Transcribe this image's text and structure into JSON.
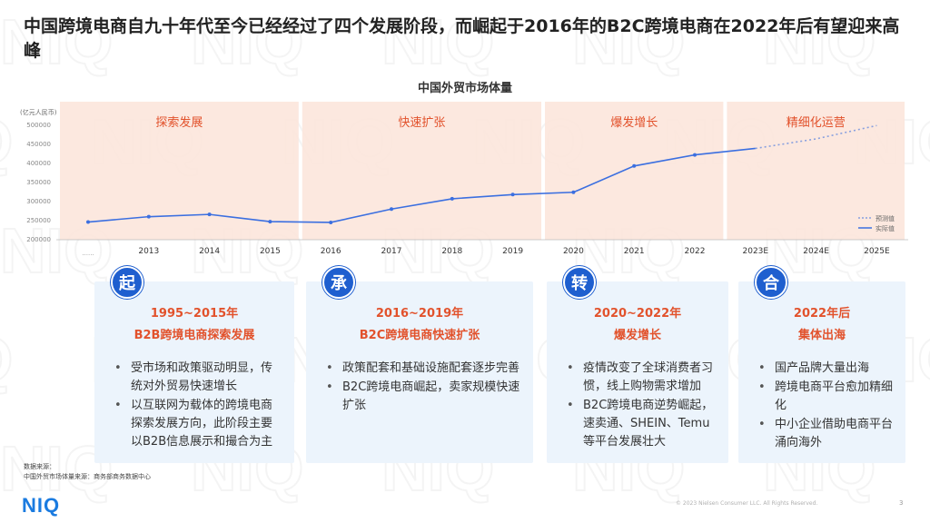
{
  "headline": "中国跨境电商自九十年代至今已经经过了四个发展阶段，而崛起于2016年的B2C跨境电商在2022年后有望迎来高峰",
  "watermark": "NIQ",
  "colors": {
    "accent": "#1f5fcf",
    "line": "#3b6fe0",
    "orange": "#e2522c",
    "phase_bg": "#fbe4d9",
    "card_bg": "#ecf4fc"
  },
  "chart_data": {
    "type": "line",
    "title": "中国外贸市场体量",
    "ylabel": "(亿元人民币)",
    "ylim": [
      200000,
      500000
    ],
    "yticks": [
      200000,
      250000,
      300000,
      350000,
      400000,
      450000,
      500000
    ],
    "ytick_labels": [
      "200000",
      "250000",
      "300000",
      "350000",
      "400000",
      "450000",
      "500000"
    ],
    "x_labels": [
      "2013",
      "2014",
      "2015",
      "2016",
      "2017",
      "2018",
      "2019",
      "2020",
      "2021",
      "2022",
      "2023E",
      "2024E",
      "2025E"
    ],
    "first_point_label": "......",
    "series": [
      {
        "name": "实际值",
        "style": "solid",
        "points": [
          {
            "x": "2012",
            "y": 244000
          },
          {
            "x": "2013",
            "y": 258000
          },
          {
            "x": "2014",
            "y": 264000
          },
          {
            "x": "2015",
            "y": 245000
          },
          {
            "x": "2016",
            "y": 243000
          },
          {
            "x": "2017",
            "y": 278000
          },
          {
            "x": "2018",
            "y": 305000
          },
          {
            "x": "2019",
            "y": 316000
          },
          {
            "x": "2020",
            "y": 322000
          },
          {
            "x": "2021",
            "y": 391000
          },
          {
            "x": "2022",
            "y": 420000
          },
          {
            "x": "2023",
            "y": 437000
          }
        ]
      },
      {
        "name": "预测值",
        "style": "dotted",
        "points": [
          {
            "x": "2023",
            "y": 437000
          },
          {
            "x": "2024E",
            "y": 462000
          },
          {
            "x": "2025E",
            "y": 497000
          }
        ]
      }
    ],
    "phases": [
      {
        "label": "探索发展",
        "from": "2012",
        "to": "2015.5"
      },
      {
        "label": "快速扩张",
        "from": "2015.5",
        "to": "2019.5"
      },
      {
        "label": "爆发增长",
        "from": "2019.5",
        "to": "2022.5"
      },
      {
        "label": "精细化运营",
        "from": "2022.5",
        "to": "2025.5"
      }
    ],
    "legend": [
      {
        "label": "预测值",
        "style": "dotted"
      },
      {
        "label": "实际值",
        "style": "solid"
      }
    ],
    "legend_position": "bottom-right",
    "grid": false
  },
  "cards": [
    {
      "badge": "起",
      "period": "1995~2015年",
      "title": "B2B跨境电商探索发展",
      "bullets": [
        "受市场和政策驱动明显，传统对外贸易快速增长",
        "以互联网为载体的跨境电商探索发展方向，此阶段主要以B2B信息展示和撮合为主"
      ]
    },
    {
      "badge": "承",
      "period": "2016~2019年",
      "title": "B2C跨境电商快速扩张",
      "bullets": [
        "政策配套和基础设施配套逐步完善",
        "B2C跨境电商崛起，卖家规模快速扩张"
      ]
    },
    {
      "badge": "转",
      "period": "2020~2022年",
      "title": "爆发增长",
      "bullets": [
        "疫情改变了全球消费者习惯，线上购物需求增加",
        "B2C跨境电商逆势崛起，速卖通、SHEIN、Temu等平台发展壮大"
      ]
    },
    {
      "badge": "合",
      "period": "2022年后",
      "title": "集体出海",
      "bullets": [
        "国产品牌大量出海",
        "跨境电商平台愈加精细化",
        "中小企业借助电商平台涌向海外"
      ]
    }
  ],
  "footer": {
    "source_label": "数据来源：",
    "source_line": "中国外贸市场体量来源：商务部商务数据中心",
    "logo": "NIQ",
    "copyright": "© 2023 Nielsen Consumer LLC. All Rights Reserved.",
    "page_number": "3"
  }
}
